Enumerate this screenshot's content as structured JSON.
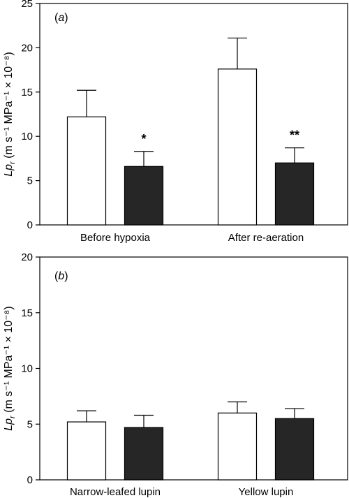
{
  "chart_data": [
    {
      "type": "bar",
      "panel_label": "(a)",
      "ylabel_main": "Lp",
      "ylabel_sub": "r",
      "ylabel_units": "(m s⁻¹ MPa⁻¹ × 10⁻⁸)",
      "ylim": [
        0,
        25
      ],
      "yticks": [
        0,
        5,
        10,
        15,
        20,
        25
      ],
      "categories": [
        "Before hypoxia",
        "After re-aeration"
      ],
      "series": [
        {
          "fill": "#ffffff",
          "values": [
            12.2,
            17.6
          ],
          "errors": [
            3.0,
            3.5
          ],
          "annotations": [
            "",
            ""
          ]
        },
        {
          "fill": "#262626",
          "values": [
            6.6,
            7.0
          ],
          "errors": [
            1.7,
            1.7
          ],
          "annotations": [
            "*",
            "**"
          ]
        }
      ],
      "grid": false
    },
    {
      "type": "bar",
      "panel_label": "(b)",
      "ylabel_main": "Lp",
      "ylabel_sub": "r",
      "ylabel_units": "(m s⁻¹ MPa⁻¹ × 10⁻⁸)",
      "ylim": [
        0,
        20
      ],
      "yticks": [
        0,
        5,
        10,
        15,
        20
      ],
      "categories": [
        "Narrow-leafed lupin",
        "Yellow lupin"
      ],
      "series": [
        {
          "fill": "#ffffff",
          "values": [
            5.2,
            6.0
          ],
          "errors": [
            1.0,
            1.0
          ],
          "annotations": [
            "",
            ""
          ]
        },
        {
          "fill": "#262626",
          "values": [
            4.7,
            5.5
          ],
          "errors": [
            1.1,
            0.9
          ],
          "annotations": [
            "",
            ""
          ]
        }
      ],
      "grid": false
    }
  ]
}
